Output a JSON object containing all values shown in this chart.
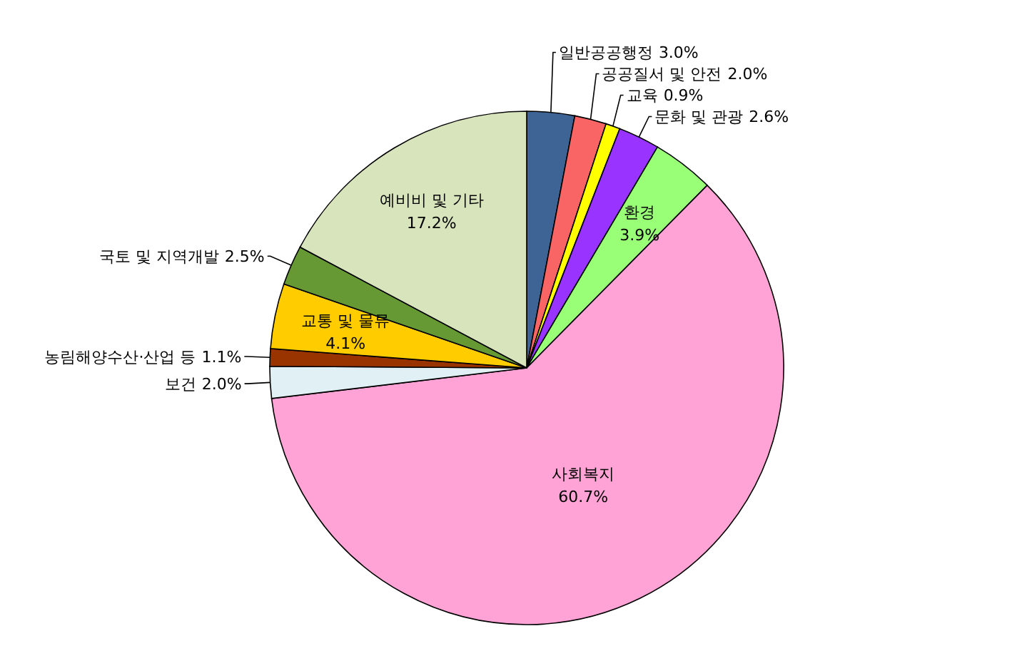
{
  "chart_data": {
    "type": "pie",
    "categories": [
      "일반공공행정",
      "공공질서 및 안전",
      "교육",
      "문화 및 관광",
      "환경",
      "사회복지",
      "보건",
      "농림해양수산·산업 등",
      "교통 및 물류",
      "국토 및 지역개발",
      "예비비 및 기타"
    ],
    "values": [
      3.0,
      2.0,
      0.9,
      2.6,
      3.9,
      60.7,
      2.0,
      1.1,
      4.1,
      2.5,
      17.2
    ],
    "colors": [
      "#3e6496",
      "#f96464",
      "#ffff00",
      "#9933ff",
      "#99ff77",
      "#ffa3d6",
      "#e0f0f4",
      "#993300",
      "#ffcc00",
      "#669933",
      "#d8e4bc"
    ],
    "value_labels": [
      "3.0%",
      "2.0%",
      "0.9%",
      "2.6%",
      "3.9%",
      "60.7%",
      "2.0%",
      "1.1%",
      "4.1%",
      "2.5%",
      "17.2%"
    ]
  }
}
